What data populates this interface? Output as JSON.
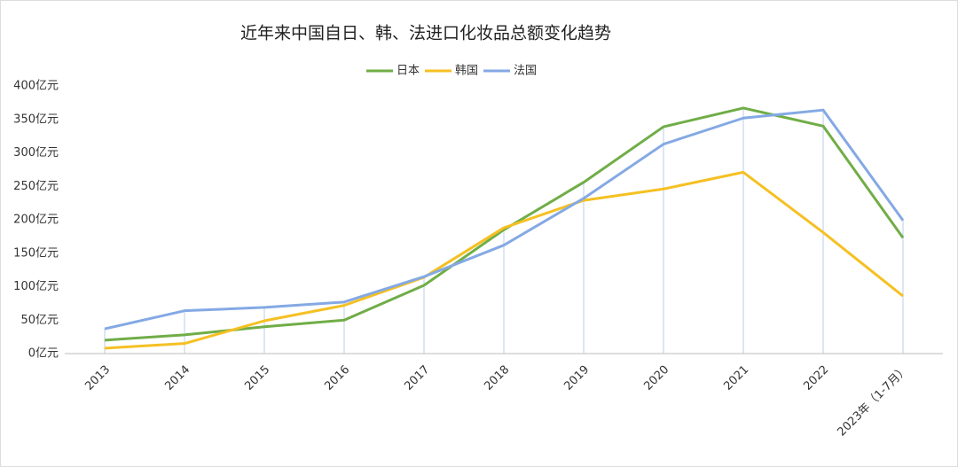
{
  "chart_data": {
    "type": "line",
    "title": "近年来中国自日、韩、法进口化妆品总额变化趋势",
    "categories": [
      "2013",
      "2014",
      "2015",
      "2016",
      "2017",
      "2018",
      "2019",
      "2020",
      "2021",
      "2022",
      "2023年（1-7月）"
    ],
    "series": [
      {
        "name": "日本",
        "color": "#70ad47",
        "values": [
          20,
          28,
          40,
          50,
          102,
          185,
          256,
          339,
          367,
          340,
          173
        ]
      },
      {
        "name": "韩国",
        "color": "#f5c022",
        "values": [
          8,
          15,
          49,
          72,
          114,
          188,
          229,
          246,
          271,
          181,
          86
        ]
      },
      {
        "name": "法国",
        "color": "#84a9e4",
        "values": [
          37,
          64,
          69,
          77,
          115,
          162,
          232,
          313,
          352,
          364,
          199
        ]
      }
    ],
    "ylim": [
      0,
      400
    ],
    "yticks": [
      {
        "value": 0,
        "label": "0亿元"
      },
      {
        "value": 50,
        "label": "50亿元"
      },
      {
        "value": 100,
        "label": "100亿元"
      },
      {
        "value": 150,
        "label": "150亿元"
      },
      {
        "value": 200,
        "label": "200亿元"
      },
      {
        "value": 250,
        "label": "250亿元"
      },
      {
        "value": 300,
        "label": "300亿元"
      },
      {
        "value": 350,
        "label": "350亿元"
      },
      {
        "value": 400,
        "label": "400亿元"
      }
    ],
    "grid": false,
    "legend": "top"
  }
}
